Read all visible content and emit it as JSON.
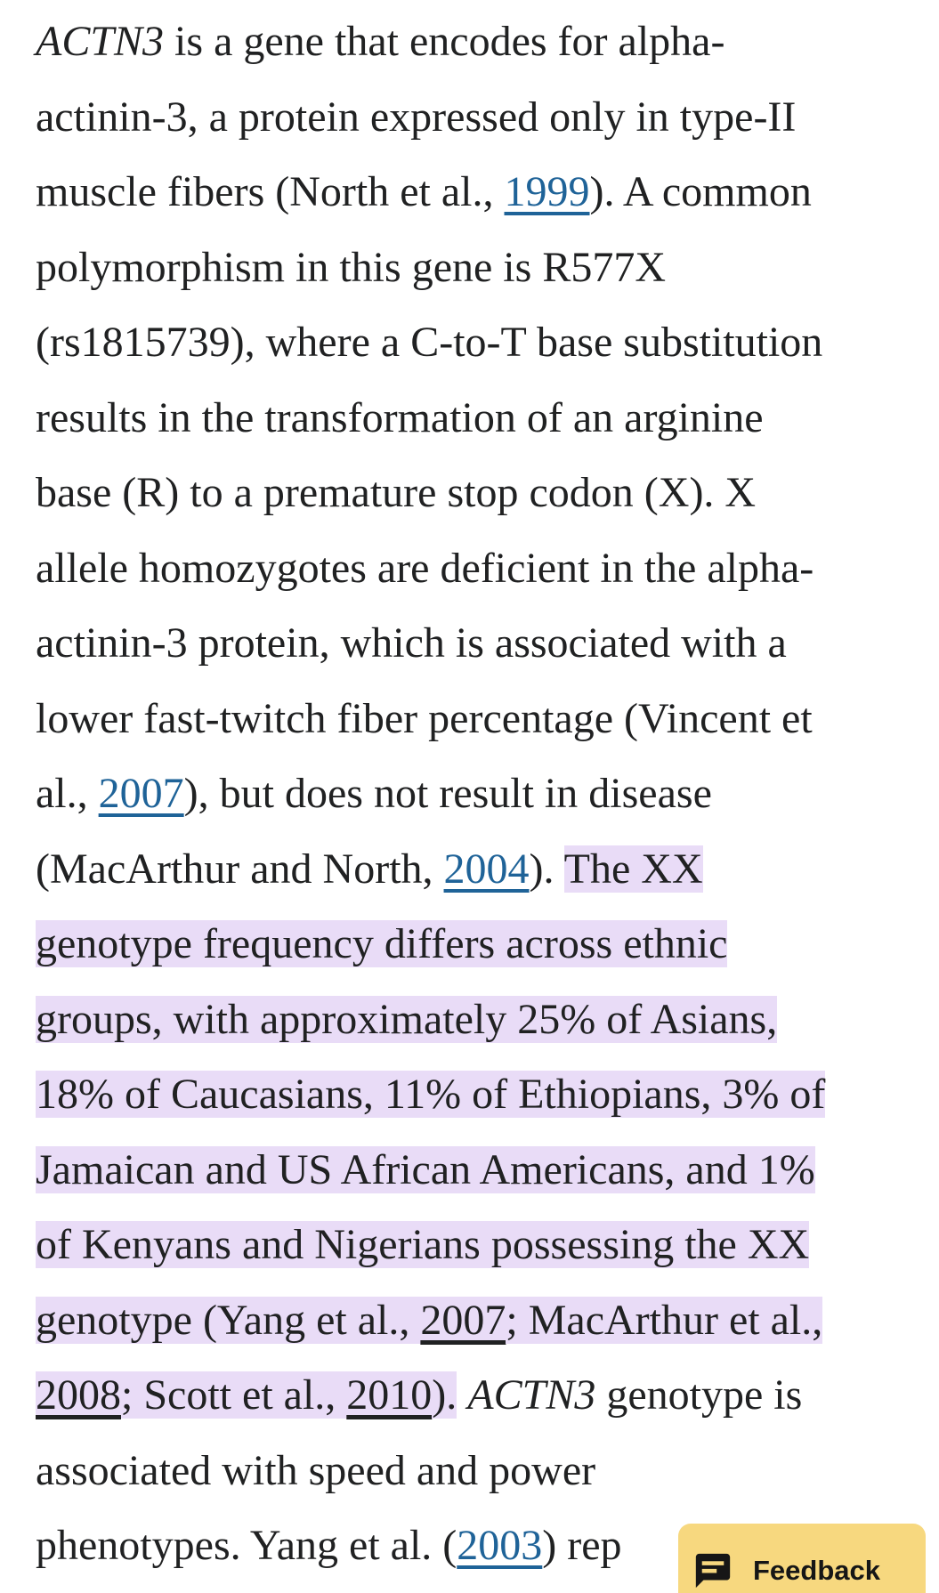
{
  "theme": {
    "background": "#ffffff",
    "text_color": "#202122",
    "link_color": "#1f6398",
    "highlight_color": "#e9dcf7",
    "feedback_button_color": "#f7d87f"
  },
  "article": {
    "lines": [
      {
        "segments": [
          {
            "text": "ACTN3",
            "style": "italic"
          },
          {
            "text": " is a gene that encodes for alpha-",
            "style": "plain"
          }
        ]
      },
      {
        "segments": [
          {
            "text": "actinin-3, a protein expressed only in type-II",
            "style": "plain"
          }
        ]
      },
      {
        "segments": [
          {
            "text": "muscle fibers (North et al., ",
            "style": "plain"
          },
          {
            "text": "1999",
            "style": "link"
          },
          {
            "text": "). A common",
            "style": "plain"
          }
        ]
      },
      {
        "segments": [
          {
            "text": "polymorphism in this gene is R577X",
            "style": "plain"
          }
        ]
      },
      {
        "segments": [
          {
            "text": "(rs1815739), where a C-to-T base substitution",
            "style": "plain"
          }
        ]
      },
      {
        "segments": [
          {
            "text": "results in the transformation of an arginine",
            "style": "plain"
          }
        ]
      },
      {
        "segments": [
          {
            "text": "base (R) to a premature stop codon (X). X",
            "style": "plain"
          }
        ]
      },
      {
        "segments": [
          {
            "text": "allele homozygotes are deficient in the alpha-",
            "style": "plain"
          }
        ]
      },
      {
        "segments": [
          {
            "text": "actinin-3 protein, which is associated with a",
            "style": "plain"
          }
        ]
      },
      {
        "segments": [
          {
            "text": "lower fast-twitch fiber percentage (Vincent et",
            "style": "plain"
          }
        ]
      },
      {
        "segments": [
          {
            "text": "al., ",
            "style": "plain"
          },
          {
            "text": "2007",
            "style": "link"
          },
          {
            "text": "), but does not result in disease",
            "style": "plain"
          }
        ]
      },
      {
        "segments": [
          {
            "text": "(MacArthur and North, ",
            "style": "plain"
          },
          {
            "text": "2004",
            "style": "link"
          },
          {
            "text": "). ",
            "style": "plain"
          },
          {
            "text": "The XX",
            "style": "hl"
          }
        ]
      },
      {
        "segments": [
          {
            "text": "genotype frequency differs across ethnic",
            "style": "hl"
          }
        ]
      },
      {
        "segments": [
          {
            "text": "groups, with approximately 25% of Asians,",
            "style": "hl"
          }
        ]
      },
      {
        "segments": [
          {
            "text": "18% of Caucasians, 11% of Ethiopians, 3% of",
            "style": "hl"
          }
        ]
      },
      {
        "segments": [
          {
            "text": "Jamaican and US African Americans, and 1%",
            "style": "hl"
          }
        ]
      },
      {
        "segments": [
          {
            "text": "of Kenyans and Nigerians possessing the XX",
            "style": "hl"
          }
        ]
      },
      {
        "segments": [
          {
            "text": "genotype (Yang et al., ",
            "style": "hl"
          },
          {
            "text": "2007",
            "style": "hl-link"
          },
          {
            "text": "; MacArthur et al.,",
            "style": "hl"
          }
        ]
      },
      {
        "segments": [
          {
            "text": "2008",
            "style": "hl-link"
          },
          {
            "text": "; Scott et al., ",
            "style": "hl"
          },
          {
            "text": "2010",
            "style": "hl-link"
          },
          {
            "text": ").",
            "style": "hl"
          },
          {
            "text": " ",
            "style": "plain"
          },
          {
            "text": "ACTN3",
            "style": "italic"
          },
          {
            "text": " genotype is",
            "style": "plain"
          }
        ]
      },
      {
        "segments": [
          {
            "text": "associated with speed and power",
            "style": "plain"
          }
        ]
      },
      {
        "segments": [
          {
            "text": "phenotypes. Yang et al. (",
            "style": "plain"
          },
          {
            "text": "2003",
            "style": "link"
          },
          {
            "text": ") rep",
            "style": "plain"
          }
        ]
      }
    ]
  },
  "feedback_button": {
    "label": "Feedback",
    "icon": "feedback-bubble-icon"
  }
}
